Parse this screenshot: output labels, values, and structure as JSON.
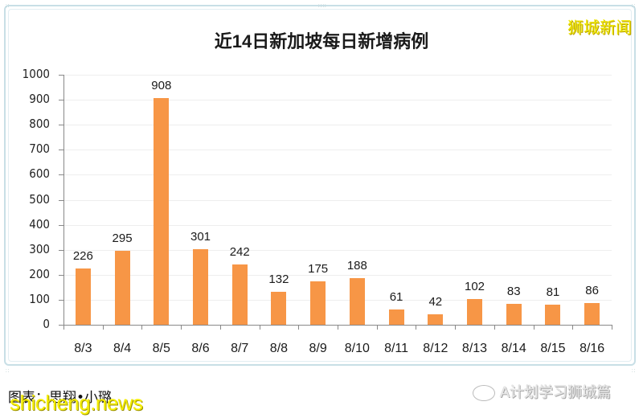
{
  "header": {
    "title": "近14日新加坡每日新增病例",
    "brand_watermark": "狮城新闻"
  },
  "footer": {
    "credit": "图表：思翔•小璐",
    "site_watermark": "shicheng.news",
    "wechat_icon": "wechat-icon",
    "wechat_account": "A计划学习狮城篇"
  },
  "colors": {
    "bar": "#f79646",
    "brand_watermark": "#f0e800",
    "frame_border": "#c8dfe6"
  },
  "chart_data": {
    "type": "bar",
    "title": "近14日新加坡每日新增病例",
    "xlabel": "",
    "ylabel": "",
    "categories": [
      "8/3",
      "8/4",
      "8/5",
      "8/6",
      "8/7",
      "8/8",
      "8/9",
      "8/10",
      "8/11",
      "8/12",
      "8/13",
      "8/14",
      "8/15",
      "8/16"
    ],
    "values": [
      226,
      295,
      908,
      301,
      242,
      132,
      175,
      188,
      61,
      42,
      102,
      83,
      81,
      86
    ],
    "data_labels": [
      "226",
      "295",
      "908",
      "301",
      "242",
      "132",
      "175",
      "188",
      "61",
      "42",
      "102",
      "83",
      "81",
      "86"
    ],
    "ylim": [
      0,
      1000
    ],
    "yticks": [
      "0",
      "100",
      "200",
      "300",
      "400",
      "500",
      "600",
      "700",
      "800",
      "900",
      "1000"
    ],
    "grid": true,
    "legend": null
  }
}
